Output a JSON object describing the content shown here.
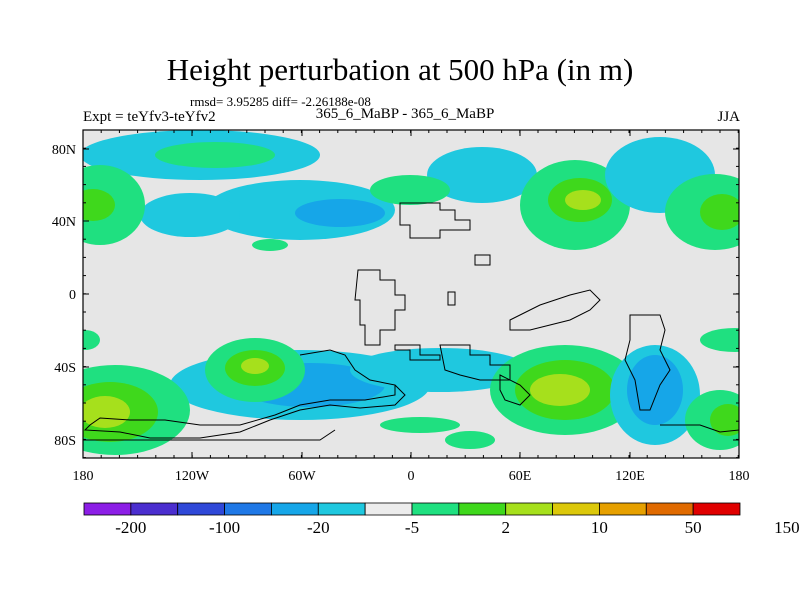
{
  "plot": {
    "title": "Height perturbation at 500 hPa (in m)",
    "stats": "rmsd= 3.95285 diff= -2.26188e-08",
    "experiment": "Expt = teYfv3-teYfv2",
    "cases": "365_6_MaBP - 365_6_MaBP",
    "season": "JJA"
  },
  "axes": {
    "lat_ticks": [
      "80N",
      "40N",
      "0",
      "40S",
      "80S"
    ],
    "lon_ticks": [
      "180",
      "120W",
      "60W",
      "0",
      "60E",
      "120E",
      "180"
    ]
  },
  "colorbar": {
    "labels": [
      "-200",
      "-100",
      "-20",
      "-5",
      "2",
      "10",
      "50",
      "150"
    ],
    "colors": [
      "#8c1ee6",
      "#4b2ecf",
      "#2f48d8",
      "#1f78e6",
      "#16a6e8",
      "#1fc8df",
      "#ececec",
      "#1fe080",
      "#3fd81c",
      "#a6e01c",
      "#dcc80a",
      "#e6a000",
      "#e06a00",
      "#e00000"
    ]
  },
  "map_fields": {
    "colors": {
      "neutral": "#e6e6e6",
      "neg_light": "#1fc8df",
      "neg_mid": "#16a6e8",
      "neg_dark": "#1f78e6",
      "pos_light": "#1fe080",
      "pos_mid": "#3fd81c",
      "pos_dark": "#a6e01c"
    }
  }
}
